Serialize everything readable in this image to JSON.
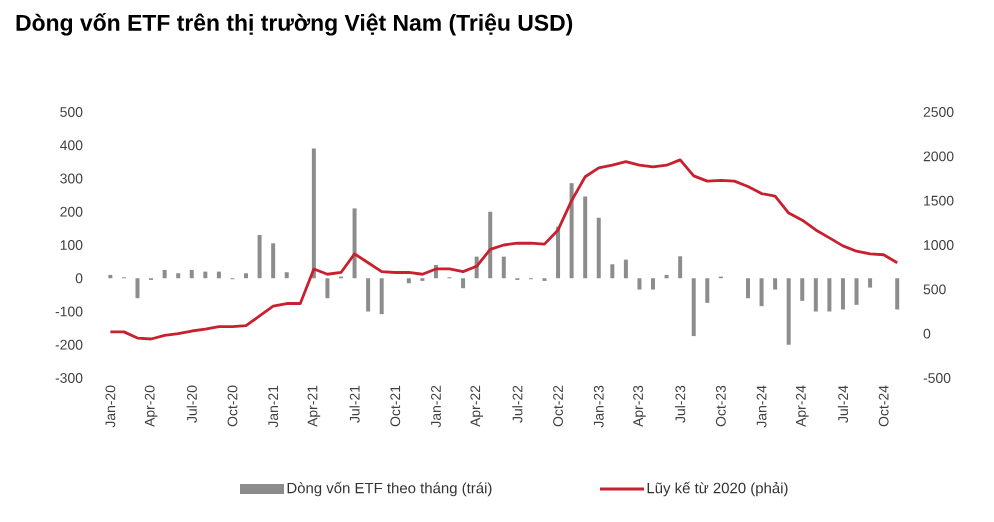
{
  "chart_data": {
    "type": "bar",
    "title": "Dòng vốn ETF trên thị trường Việt Nam (Triệu USD)",
    "categories": [
      "Jan-20",
      null,
      null,
      "Apr-20",
      null,
      null,
      "Jul-20",
      null,
      null,
      "Oct-20",
      null,
      null,
      "Jan-21",
      null,
      null,
      "Apr-21",
      null,
      null,
      "Jul-21",
      null,
      null,
      "Oct-21",
      null,
      null,
      "Jan-22",
      null,
      null,
      "Apr-22",
      null,
      null,
      "Jul-22",
      null,
      null,
      "Oct-22",
      null,
      null,
      "Jan-23",
      null,
      null,
      "Apr-23",
      null,
      null,
      "Jul-23",
      null,
      null,
      "Oct-23",
      null,
      null,
      "Jan-24",
      null,
      null,
      "Apr-24",
      null,
      null,
      "Jul-24",
      null,
      null,
      "Oct-24",
      null
    ],
    "series": [
      {
        "name": "Dòng vốn ETF theo tháng (trái)",
        "color": "#8c8c8c",
        "values": [
          10,
          3,
          -60,
          -5,
          25,
          15,
          25,
          20,
          20,
          -3,
          15,
          130,
          105,
          18,
          0,
          390,
          -60,
          5,
          210,
          -100,
          -108,
          0,
          -15,
          -8,
          40,
          3,
          -30,
          65,
          200,
          65,
          -5,
          -3,
          -8,
          155,
          286,
          246,
          182,
          42,
          56,
          -34,
          -34,
          10,
          66,
          -174,
          -74,
          5,
          0,
          -60,
          -84,
          -34,
          -200,
          -68,
          -100,
          -100,
          -94,
          -80,
          -28,
          0,
          -94
        ]
      },
      {
        "name": "Lũy kế từ 2020 (phải)",
        "type": "line",
        "axis": "y2",
        "color": "#c8202f",
        "values": [
          20,
          20,
          -50,
          -60,
          -20,
          0,
          30,
          50,
          80,
          80,
          90,
          200,
          310,
          340,
          340,
          730,
          670,
          690,
          900,
          800,
          700,
          690,
          690,
          670,
          730,
          730,
          700,
          760,
          950,
          1000,
          1020,
          1020,
          1010,
          1170,
          1500,
          1770,
          1870,
          1900,
          1940,
          1900,
          1880,
          1900,
          1960,
          1780,
          1720,
          1730,
          1720,
          1660,
          1580,
          1550,
          1360,
          1280,
          1170,
          1080,
          990,
          930,
          900,
          890,
          800
        ]
      }
    ],
    "ylim": [
      -300,
      500
    ],
    "yticks": [
      -300,
      -200,
      -100,
      0,
      100,
      200,
      300,
      400,
      500
    ],
    "y2lim": [
      -500,
      2500
    ],
    "y2ticks": [
      -500,
      0,
      500,
      1000,
      1500,
      2000,
      2500
    ],
    "legend": "bottom",
    "grid": false
  }
}
